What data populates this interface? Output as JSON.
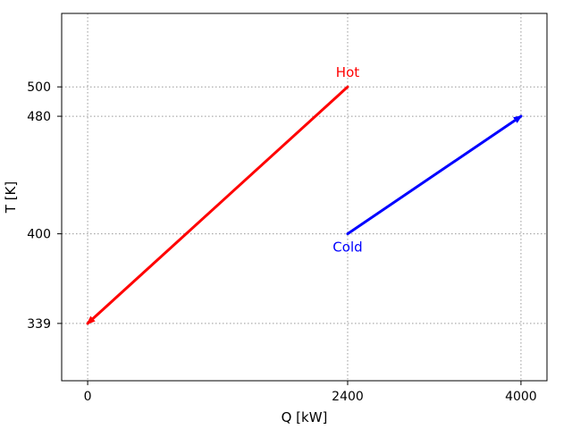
{
  "chart_data": {
    "type": "line",
    "title": "",
    "xlabel": "Q [kW]",
    "ylabel": "T [K]",
    "xlim": [
      -240,
      4240
    ],
    "ylim": [
      300,
      550
    ],
    "xticks": [
      0,
      2400,
      4000
    ],
    "yticks": [
      339,
      400,
      480,
      500
    ],
    "grid": true,
    "grid_style": "dotted",
    "series": [
      {
        "name": "Hot",
        "color": "#ff0000",
        "x": [
          2400,
          0
        ],
        "y": [
          500,
          339
        ],
        "arrow": "end"
      },
      {
        "name": "Cold",
        "color": "#0000ff",
        "x": [
          2400,
          4000
        ],
        "y": [
          400,
          480
        ],
        "arrow": "end"
      }
    ],
    "annotations": [
      {
        "text": "Hot",
        "x": 2400,
        "y": 500,
        "color": "#ff0000",
        "position": "above"
      },
      {
        "text": "Cold",
        "x": 2400,
        "y": 400,
        "color": "#0000ff",
        "position": "below"
      }
    ]
  }
}
